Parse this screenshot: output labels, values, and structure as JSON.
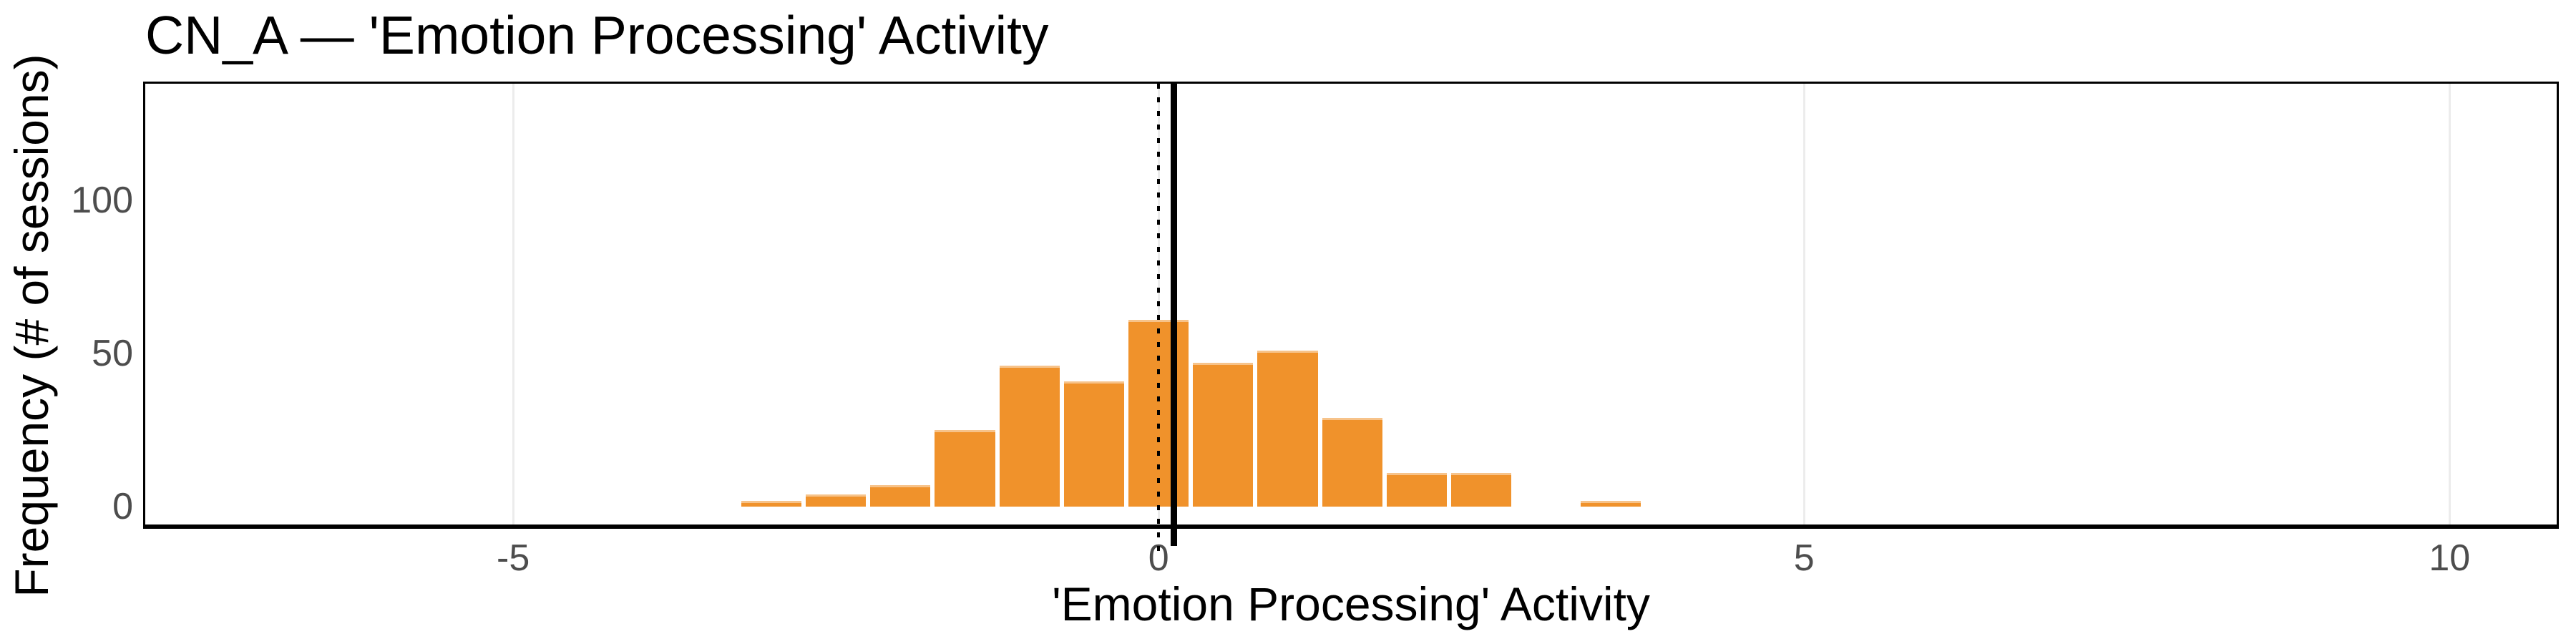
{
  "title": "CN_A — 'Emotion Processing' Activity",
  "chart_data": {
    "type": "bar",
    "subtype": "histogram",
    "title": "CN_A — 'Emotion Processing' Activity",
    "xlabel": "'Emotion Processing' Activity",
    "ylabel": "Frequency (# of sessions)",
    "bin_width": 0.5,
    "bin_centers": [
      -3.0,
      -2.5,
      -2.0,
      -1.5,
      -1.0,
      -0.5,
      0.0,
      0.5,
      1.0,
      1.5,
      2.0,
      2.5,
      3.0,
      3.5
    ],
    "counts": [
      2,
      4,
      7,
      25,
      46,
      41,
      61,
      47,
      51,
      29,
      11,
      11,
      0,
      2
    ],
    "x_ticks": [
      {
        "value": -5,
        "label": "-5"
      },
      {
        "value": 0,
        "label": "0"
      },
      {
        "value": 5,
        "label": "5"
      },
      {
        "value": 10,
        "label": "10"
      }
    ],
    "y_ticks": [
      {
        "value": 0,
        "label": "0"
      },
      {
        "value": 50,
        "label": "50"
      },
      {
        "value": 100,
        "label": "100"
      }
    ],
    "xlim": [
      -7.85,
      10.83
    ],
    "ylim": [
      -5.8,
      138.1
    ],
    "reference_lines": [
      {
        "x": 0.0,
        "style": "dotted",
        "color": "#000000",
        "name": "zero-line"
      },
      {
        "x": 0.12,
        "style": "solid",
        "color": "#000000",
        "name": "mean-line"
      }
    ],
    "bar_color": "#F0922B",
    "gridline_color": "#ECECEC",
    "grid": "vertical-major-only",
    "legend": "none",
    "tick_label_color": "#4D4D4D",
    "panel_border_color": "#000000"
  }
}
